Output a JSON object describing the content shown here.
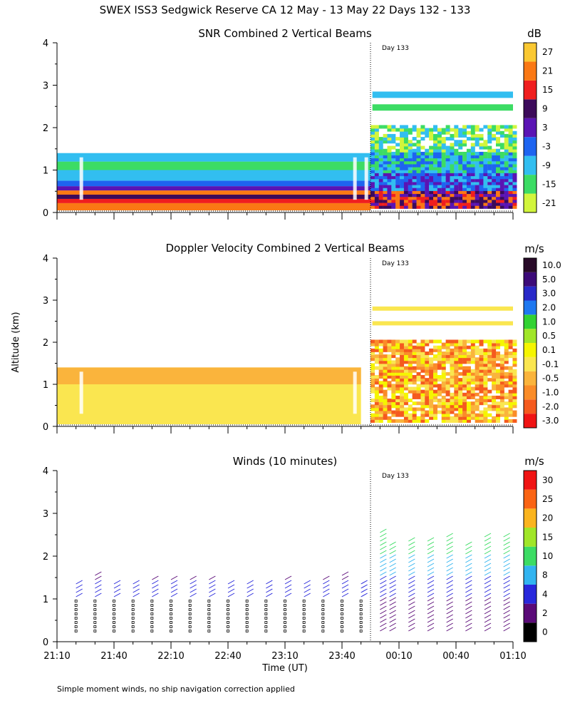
{
  "figure": {
    "title": "SWEX ISS3 Sedgwick Reserve CA  12 May - 13 May 22 Days 132 - 133",
    "ylabel": "Altitude (km)",
    "xlabel": "Time (UT)",
    "footnote": "Simple moment winds, no ship navigation correction applied"
  },
  "chart_data": [
    {
      "type": "heatmap",
      "title": "SNR Combined 2 Vertical Beams",
      "units": "dB",
      "day_marker": "Day 133",
      "xlabel": "",
      "ylabel": "Altitude (km)",
      "ylim": [
        0,
        4
      ],
      "ytick_labels": [
        "0",
        "1",
        "2",
        "3",
        "4"
      ],
      "xtick_labels": [],
      "colorbar": {
        "labels": [
          "-21",
          "-15",
          "-9",
          "-3",
          "3",
          "9",
          "15",
          "21",
          "27"
        ],
        "colors": [
          "#d2f53c",
          "#3cdc64",
          "#32bef0",
          "#1e64f0",
          "#5a14b4",
          "#3c0a5a",
          "#f01e1e",
          "#fa7814",
          "#fac832"
        ]
      },
      "layers": [
        {
          "alt": [
            0.05,
            0.22
          ],
          "value": 21
        },
        {
          "alt": [
            0.22,
            0.32
          ],
          "value": 15
        },
        {
          "alt": [
            0.32,
            0.42
          ],
          "value": 9
        },
        {
          "alt": [
            0.42,
            0.52
          ],
          "value": 21
        },
        {
          "alt": [
            0.52,
            0.62
          ],
          "value": 3
        },
        {
          "alt": [
            0.62,
            0.75
          ],
          "value": -3
        },
        {
          "alt": [
            0.75,
            1.0
          ],
          "value": -9
        },
        {
          "alt": [
            1.0,
            1.2
          ],
          "value": -15
        },
        {
          "alt": [
            1.2,
            1.4
          ],
          "value": -9
        }
      ],
      "upper_layers_after_day133": [
        {
          "alt": [
            1.4,
            2.2
          ],
          "value": -15
        },
        {
          "alt": [
            2.4,
            2.55
          ],
          "value": -15
        },
        {
          "alt": [
            2.7,
            2.85
          ],
          "value": -9
        }
      ]
    },
    {
      "type": "heatmap",
      "title": "Doppler Velocity Combined 2 Vertical Beams",
      "units": "m/s",
      "day_marker": "Day 133",
      "ylim": [
        0,
        4
      ],
      "ytick_labels": [
        "0",
        "1",
        "2",
        "3",
        "4"
      ],
      "xtick_labels": [],
      "colorbar": {
        "labels": [
          "-3.0",
          "-2.0",
          "-1.0",
          "-0.5",
          "-0.1",
          "0.1",
          "0.5",
          "1.0",
          "2.0",
          "3.0",
          "5.0",
          "10.0"
        ],
        "colors": [
          "#f01414",
          "#f55a1e",
          "#fa8c28",
          "#fab43c",
          "#fae650",
          "#f5f500",
          "#a0e628",
          "#32d232",
          "#1e78f0",
          "#2828c8",
          "#3c0a78",
          "#280a28"
        ]
      },
      "layers": [
        {
          "alt": [
            0.05,
            1.4
          ],
          "value": -0.1
        },
        {
          "alt": [
            1.0,
            1.4
          ],
          "value": -0.5
        }
      ],
      "upper_layers_after_day133": [
        {
          "alt": [
            0.1,
            1.95
          ],
          "value": -0.5
        },
        {
          "alt": [
            2.4,
            2.5
          ],
          "value": -0.1
        },
        {
          "alt": [
            2.75,
            2.85
          ],
          "value": -0.1
        }
      ]
    },
    {
      "type": "wind_barbs",
      "title": "Winds (10 minutes)",
      "units": "m/s",
      "day_marker": "Day 133",
      "xlabel": "Time (UT)",
      "ylim": [
        0,
        4
      ],
      "ytick_labels": [
        "0",
        "1",
        "2",
        "3",
        "4"
      ],
      "xtick_labels": [
        "21:10",
        "21:40",
        "22:10",
        "22:40",
        "23:10",
        "23:40",
        "00:10",
        "00:40",
        "01:10"
      ],
      "colorbar": {
        "labels": [
          "0",
          "2",
          "4",
          "8",
          "10",
          "15",
          "20",
          "25",
          "30"
        ],
        "colors": [
          "#000000",
          "#5a0a78",
          "#2828dc",
          "#32b4f0",
          "#3cdc64",
          "#a0e628",
          "#fab41e",
          "#fa6414",
          "#f01414"
        ]
      },
      "profiles_minutes_after_2110": [
        10,
        20,
        30,
        40,
        50,
        60,
        70,
        80,
        90,
        100,
        110,
        120,
        130,
        140,
        150,
        160,
        170,
        175,
        185,
        195,
        205,
        215,
        225,
        235
      ]
    }
  ]
}
